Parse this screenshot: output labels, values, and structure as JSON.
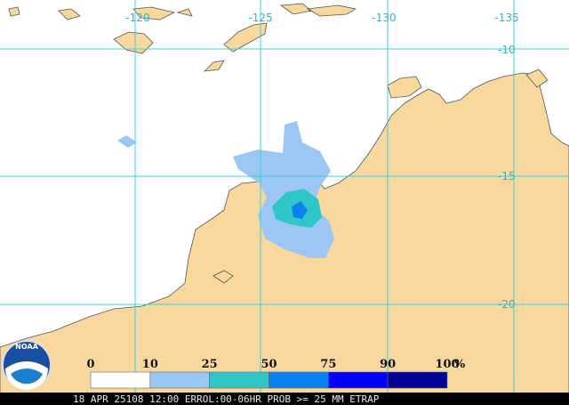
{
  "map": {
    "lon_labels": [
      "-120",
      "-125",
      "-130",
      "-135"
    ],
    "lat_labels": [
      "-10",
      "-15",
      "-20"
    ],
    "logo": "NOAA",
    "legend": {
      "ticks": [
        "0",
        "10",
        "25",
        "50",
        "75",
        "90",
        "100"
      ],
      "unit": "%",
      "colors": [
        "#ffffff",
        "#9cc6f4",
        "#30c6c8",
        "#0a82f2",
        "#0000fa",
        "#000096"
      ]
    },
    "footer": "18 APR 25108 12:00 ERROL:00-06HR PROB >= 25 MM ETRAP"
  }
}
